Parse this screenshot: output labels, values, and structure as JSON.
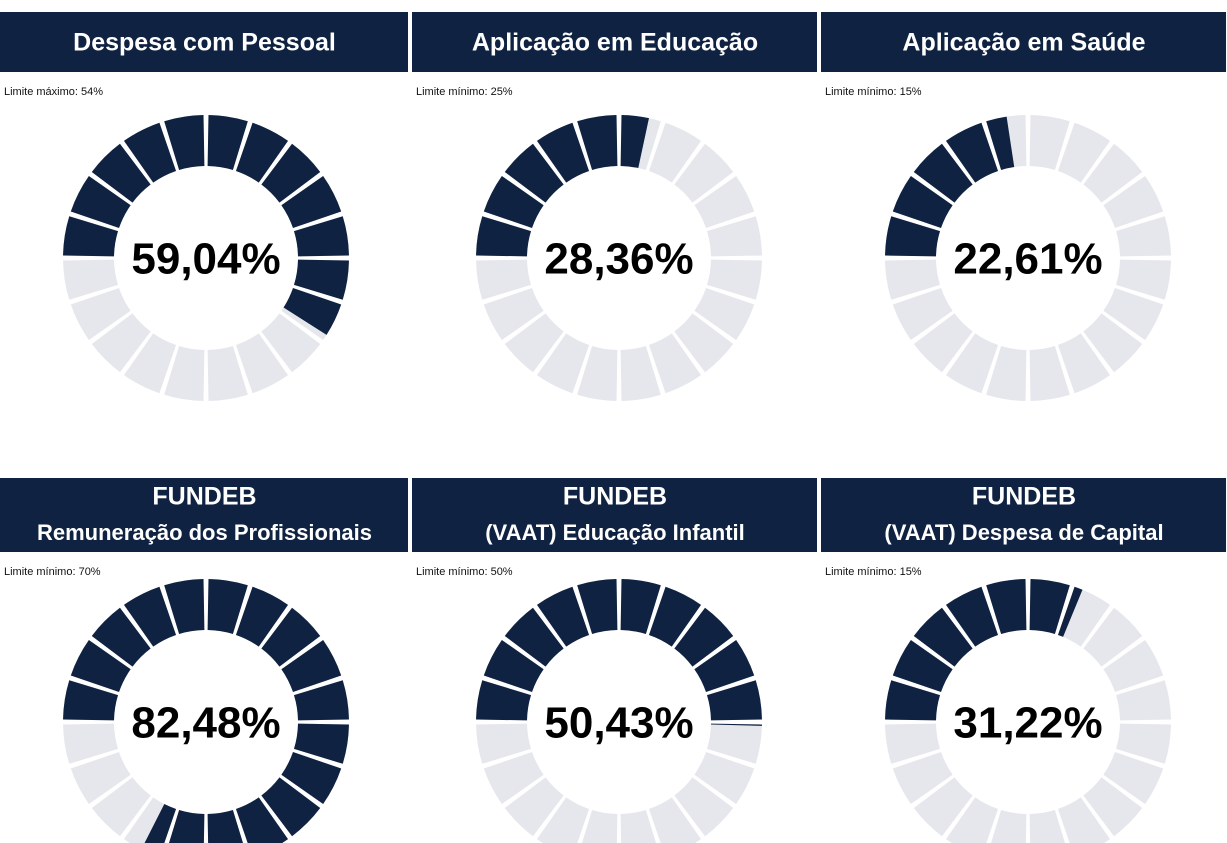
{
  "chart_data": [
    {
      "type": "gauge",
      "title": "Despesa com Pessoal",
      "annotation": "Limite máximo: 54%",
      "values": [
        59.04
      ],
      "value_labels": [
        "59,04%"
      ],
      "color": "#0f2241",
      "track_color": "#e6e7ec"
    },
    {
      "type": "gauge",
      "title": "Aplicação em Educação",
      "annotation": "Limite mínimo: 25%",
      "values": [
        28.36
      ],
      "value_labels": [
        "28,36%"
      ],
      "color": "#0f2241",
      "track_color": "#e6e7ec"
    },
    {
      "type": "gauge",
      "title": "Aplicação em Saúde",
      "annotation": "Limite mínimo: 15%",
      "values": [
        22.61
      ],
      "value_labels": [
        "22,61%"
      ],
      "color": "#0f2241",
      "track_color": "#e6e7ec"
    },
    {
      "type": "gauge",
      "title": "FUNDEB",
      "subtitle": "Remuneração dos Profissionais",
      "annotation": "Limite mínimo: 70%",
      "values": [
        82.48
      ],
      "value_labels": [
        "82,48%"
      ],
      "color": "#0f2241",
      "track_color": "#e6e7ec"
    },
    {
      "type": "gauge",
      "title": "FUNDEB",
      "subtitle": "(VAAT)  Educação Infantil",
      "annotation": "Limite mínimo: 50%",
      "values": [
        50.43
      ],
      "value_labels": [
        "50,43%"
      ],
      "color": "#0f2241",
      "track_color": "#e6e7ec"
    },
    {
      "type": "gauge",
      "title": "FUNDEB",
      "subtitle": "(VAAT)  Despesa de Capital",
      "annotation": "Limite mínimo: 15%",
      "values": [
        31.22
      ],
      "value_labels": [
        "31,22%"
      ],
      "color": "#0f2241",
      "track_color": "#e6e7ec"
    }
  ]
}
